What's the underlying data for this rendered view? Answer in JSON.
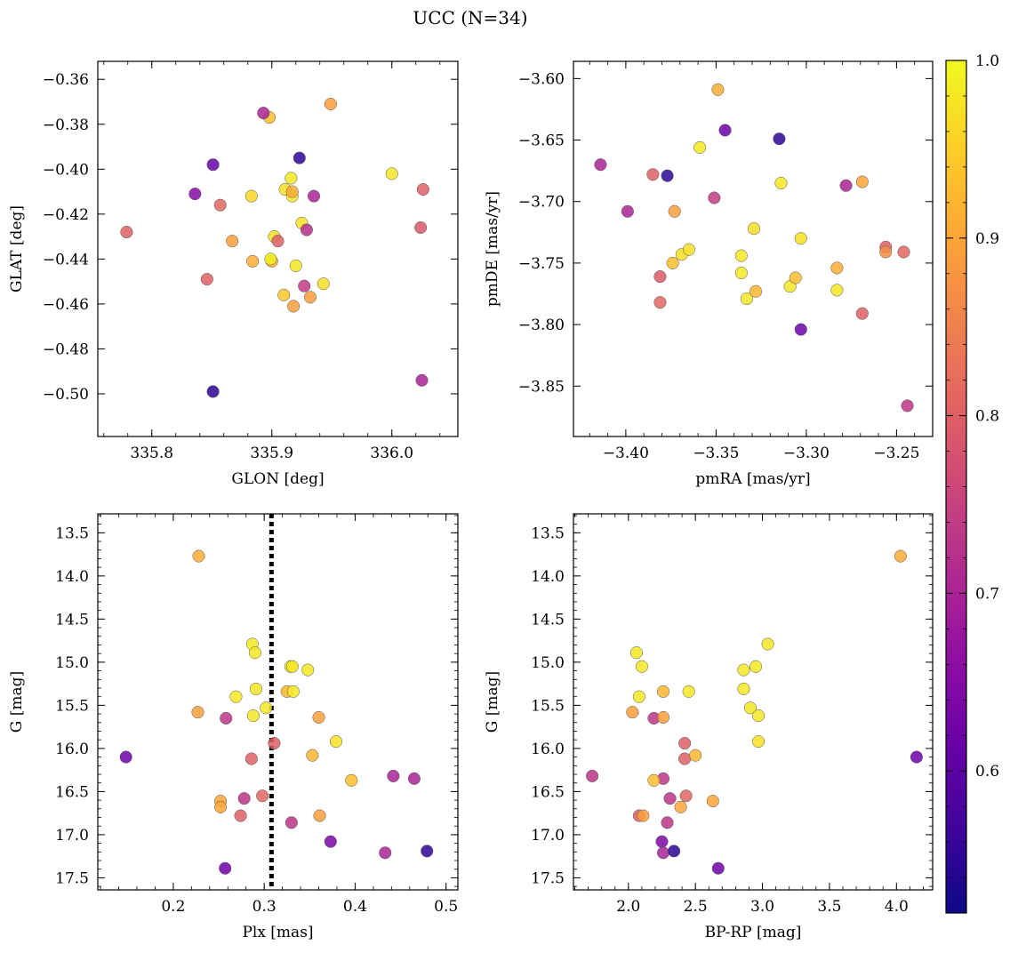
{
  "title": "UCC (N=34)",
  "colorbar": {
    "cmap": "plasma",
    "range": [
      0.52,
      1.0
    ],
    "ticks": [
      "0.6",
      "0.7",
      "0.8",
      "0.9",
      "1.0"
    ],
    "tick_values": [
      0.6,
      0.7,
      0.8,
      0.9,
      1.0
    ]
  },
  "chart_data": [
    {
      "type": "scatter",
      "xlabel": "GLON [deg]",
      "ylabel": "GLAT [deg]",
      "xlim": [
        335.755,
        336.055
      ],
      "ylim": [
        -0.519,
        -0.352
      ],
      "xticks": [
        "335.8",
        "335.9",
        "336.0"
      ],
      "xtick_values": [
        335.8,
        335.9,
        336.0
      ],
      "yticks": [
        "−0.36",
        "−0.38",
        "−0.40",
        "−0.42",
        "−0.44",
        "−0.46",
        "−0.48",
        "−0.50"
      ],
      "ytick_values": [
        -0.36,
        -0.38,
        -0.4,
        -0.42,
        -0.44,
        -0.46,
        -0.48,
        -0.5
      ],
      "points": [
        {
          "x": 335.779,
          "y": -0.428,
          "c": 0.8
        },
        {
          "x": 335.857,
          "y": -0.416,
          "c": 0.81
        },
        {
          "x": 335.851,
          "y": -0.398,
          "c": 0.61
        },
        {
          "x": 335.851,
          "y": -0.499,
          "c": 0.55
        },
        {
          "x": 335.846,
          "y": -0.449,
          "c": 0.8
        },
        {
          "x": 335.836,
          "y": -0.411,
          "c": 0.65
        },
        {
          "x": 335.898,
          "y": -0.377,
          "c": 0.93
        },
        {
          "x": 335.893,
          "y": -0.375,
          "c": 0.7
        },
        {
          "x": 335.917,
          "y": -0.412,
          "c": 0.98
        },
        {
          "x": 335.867,
          "y": -0.432,
          "c": 0.89
        },
        {
          "x": 335.883,
          "y": -0.412,
          "c": 0.96
        },
        {
          "x": 335.884,
          "y": -0.441,
          "c": 0.91
        },
        {
          "x": 335.9,
          "y": -0.441,
          "c": 0.91
        },
        {
          "x": 335.899,
          "y": -0.44,
          "c": 0.99
        },
        {
          "x": 335.902,
          "y": -0.43,
          "c": 0.97
        },
        {
          "x": 335.905,
          "y": -0.432,
          "c": 0.8
        },
        {
          "x": 335.91,
          "y": -0.456,
          "c": 0.94
        },
        {
          "x": 335.911,
          "y": -0.409,
          "c": 0.97
        },
        {
          "x": 335.916,
          "y": -0.404,
          "c": 0.98
        },
        {
          "x": 335.917,
          "y": -0.41,
          "c": 0.91
        },
        {
          "x": 335.918,
          "y": -0.461,
          "c": 0.89
        },
        {
          "x": 335.92,
          "y": -0.443,
          "c": 0.98
        },
        {
          "x": 335.923,
          "y": -0.395,
          "c": 0.55
        },
        {
          "x": 335.925,
          "y": -0.424,
          "c": 0.97
        },
        {
          "x": 335.927,
          "y": -0.452,
          "c": 0.74
        },
        {
          "x": 335.929,
          "y": -0.427,
          "c": 0.72
        },
        {
          "x": 335.932,
          "y": -0.457,
          "c": 0.89
        },
        {
          "x": 335.935,
          "y": -0.412,
          "c": 0.7
        },
        {
          "x": 335.943,
          "y": -0.451,
          "c": 0.97
        },
        {
          "x": 335.949,
          "y": -0.371,
          "c": 0.89
        },
        {
          "x": 336.0,
          "y": -0.402,
          "c": 0.98
        },
        {
          "x": 336.024,
          "y": -0.426,
          "c": 0.79
        },
        {
          "x": 336.026,
          "y": -0.409,
          "c": 0.8
        },
        {
          "x": 336.025,
          "y": -0.494,
          "c": 0.7
        }
      ]
    },
    {
      "type": "scatter",
      "xlabel": "pmRA [mas/yr]",
      "ylabel": "pmDE [mas/yr]",
      "xlim": [
        -3.429,
        -3.23
      ],
      "ylim": [
        -3.891,
        -3.586
      ],
      "xticks": [
        "−3.40",
        "−3.35",
        "−3.30",
        "−3.25"
      ],
      "xtick_values": [
        -3.4,
        -3.35,
        -3.3,
        -3.25
      ],
      "yticks": [
        "−3.60",
        "−3.65",
        "−3.70",
        "−3.75",
        "−3.80",
        "−3.85"
      ],
      "ytick_values": [
        -3.6,
        -3.65,
        -3.7,
        -3.75,
        -3.8,
        -3.85
      ],
      "points": [
        {
          "x": -3.414,
          "y": -3.67,
          "c": 0.7
        },
        {
          "x": -3.399,
          "y": -3.708,
          "c": 0.7
        },
        {
          "x": -3.385,
          "y": -3.678,
          "c": 0.8
        },
        {
          "x": -3.377,
          "y": -3.679,
          "c": 0.55
        },
        {
          "x": -3.381,
          "y": -3.761,
          "c": 0.79
        },
        {
          "x": -3.381,
          "y": -3.782,
          "c": 0.81
        },
        {
          "x": -3.373,
          "y": -3.708,
          "c": 0.89
        },
        {
          "x": -3.374,
          "y": -3.75,
          "c": 0.93
        },
        {
          "x": -3.369,
          "y": -3.743,
          "c": 0.97
        },
        {
          "x": -3.365,
          "y": -3.739,
          "c": 0.97
        },
        {
          "x": -3.359,
          "y": -3.656,
          "c": 0.98
        },
        {
          "x": -3.349,
          "y": -3.609,
          "c": 0.91
        },
        {
          "x": -3.345,
          "y": -3.642,
          "c": 0.62
        },
        {
          "x": -3.351,
          "y": -3.697,
          "c": 0.74
        },
        {
          "x": -3.336,
          "y": -3.744,
          "c": 0.98
        },
        {
          "x": -3.336,
          "y": -3.758,
          "c": 0.98
        },
        {
          "x": -3.333,
          "y": -3.779,
          "c": 0.98
        },
        {
          "x": -3.329,
          "y": -3.722,
          "c": 0.97
        },
        {
          "x": -3.328,
          "y": -3.773,
          "c": 0.92
        },
        {
          "x": -3.315,
          "y": -3.649,
          "c": 0.55
        },
        {
          "x": -3.314,
          "y": -3.685,
          "c": 0.98
        },
        {
          "x": -3.309,
          "y": -3.769,
          "c": 0.98
        },
        {
          "x": -3.306,
          "y": -3.762,
          "c": 0.93
        },
        {
          "x": -3.303,
          "y": -3.73,
          "c": 0.97
        },
        {
          "x": -3.303,
          "y": -3.804,
          "c": 0.62
        },
        {
          "x": -3.283,
          "y": -3.754,
          "c": 0.91
        },
        {
          "x": -3.283,
          "y": -3.772,
          "c": 0.98
        },
        {
          "x": -3.278,
          "y": -3.687,
          "c": 0.7
        },
        {
          "x": -3.269,
          "y": -3.684,
          "c": 0.9
        },
        {
          "x": -3.269,
          "y": -3.791,
          "c": 0.8
        },
        {
          "x": -3.256,
          "y": -3.737,
          "c": 0.8
        },
        {
          "x": -3.256,
          "y": -3.741,
          "c": 0.87
        },
        {
          "x": -3.246,
          "y": -3.741,
          "c": 0.81
        },
        {
          "x": -3.244,
          "y": -3.866,
          "c": 0.73
        }
      ]
    },
    {
      "type": "scatter",
      "xlabel": "Plx [mas]",
      "ylabel": "G [mag]",
      "xlim": [
        0.117,
        0.513
      ],
      "ylim": [
        17.64,
        13.28
      ],
      "reference_line": {
        "x": 0.308,
        "style": "dotted"
      },
      "xticks": [
        "0.2",
        "0.3",
        "0.4",
        "0.5"
      ],
      "xtick_values": [
        0.2,
        0.3,
        0.4,
        0.5
      ],
      "yticks": [
        "13.5",
        "14.0",
        "14.5",
        "15.0",
        "15.5",
        "16.0",
        "16.5",
        "17.0",
        "17.5"
      ],
      "ytick_values": [
        13.5,
        14.0,
        14.5,
        15.0,
        15.5,
        16.0,
        16.5,
        17.0,
        17.5
      ],
      "points": [
        {
          "x": 0.228,
          "y": 13.77,
          "c": 0.91
        },
        {
          "x": 0.287,
          "y": 14.79,
          "c": 0.98
        },
        {
          "x": 0.29,
          "y": 14.89,
          "c": 0.98
        },
        {
          "x": 0.329,
          "y": 15.05,
          "c": 0.98
        },
        {
          "x": 0.331,
          "y": 15.05,
          "c": 0.98
        },
        {
          "x": 0.348,
          "y": 15.09,
          "c": 0.98
        },
        {
          "x": 0.291,
          "y": 15.31,
          "c": 0.98
        },
        {
          "x": 0.325,
          "y": 15.34,
          "c": 0.92
        },
        {
          "x": 0.332,
          "y": 15.34,
          "c": 0.98
        },
        {
          "x": 0.269,
          "y": 15.4,
          "c": 0.98
        },
        {
          "x": 0.302,
          "y": 15.53,
          "c": 0.98
        },
        {
          "x": 0.227,
          "y": 15.58,
          "c": 0.89
        },
        {
          "x": 0.288,
          "y": 15.62,
          "c": 0.98
        },
        {
          "x": 0.258,
          "y": 15.65,
          "c": 0.73
        },
        {
          "x": 0.36,
          "y": 15.64,
          "c": 0.89
        },
        {
          "x": 0.379,
          "y": 15.92,
          "c": 0.97
        },
        {
          "x": 0.311,
          "y": 15.94,
          "c": 0.8
        },
        {
          "x": 0.148,
          "y": 16.1,
          "c": 0.62
        },
        {
          "x": 0.286,
          "y": 16.12,
          "c": 0.8
        },
        {
          "x": 0.353,
          "y": 16.08,
          "c": 0.92
        },
        {
          "x": 0.442,
          "y": 16.32,
          "c": 0.7
        },
        {
          "x": 0.465,
          "y": 16.35,
          "c": 0.7
        },
        {
          "x": 0.396,
          "y": 16.37,
          "c": 0.93
        },
        {
          "x": 0.298,
          "y": 16.55,
          "c": 0.81
        },
        {
          "x": 0.278,
          "y": 16.58,
          "c": 0.73
        },
        {
          "x": 0.252,
          "y": 16.61,
          "c": 0.9
        },
        {
          "x": 0.252,
          "y": 16.68,
          "c": 0.9
        },
        {
          "x": 0.274,
          "y": 16.78,
          "c": 0.8
        },
        {
          "x": 0.361,
          "y": 16.78,
          "c": 0.89
        },
        {
          "x": 0.33,
          "y": 16.86,
          "c": 0.73
        },
        {
          "x": 0.373,
          "y": 17.08,
          "c": 0.64
        },
        {
          "x": 0.433,
          "y": 17.21,
          "c": 0.7
        },
        {
          "x": 0.479,
          "y": 17.19,
          "c": 0.55
        },
        {
          "x": 0.257,
          "y": 17.39,
          "c": 0.62
        }
      ]
    },
    {
      "type": "scatter",
      "xlabel": "BP-RP [mag]",
      "ylabel": "G [mag]",
      "xlim": [
        1.59,
        4.27
      ],
      "ylim": [
        17.64,
        13.28
      ],
      "xticks": [
        "2.0",
        "2.5",
        "3.0",
        "3.5",
        "4.0"
      ],
      "xtick_values": [
        2.0,
        2.5,
        3.0,
        3.5,
        4.0
      ],
      "yticks": [
        "13.5",
        "14.0",
        "14.5",
        "15.0",
        "15.5",
        "16.0",
        "16.5",
        "17.0",
        "17.5"
      ],
      "ytick_values": [
        13.5,
        14.0,
        14.5,
        15.0,
        15.5,
        16.0,
        16.5,
        17.0,
        17.5
      ],
      "points": [
        {
          "x": 4.03,
          "y": 13.77,
          "c": 0.91
        },
        {
          "x": 2.06,
          "y": 14.89,
          "c": 0.98
        },
        {
          "x": 2.1,
          "y": 15.05,
          "c": 0.98
        },
        {
          "x": 3.04,
          "y": 14.79,
          "c": 0.98
        },
        {
          "x": 2.86,
          "y": 15.09,
          "c": 0.98
        },
        {
          "x": 2.95,
          "y": 15.05,
          "c": 0.98
        },
        {
          "x": 2.86,
          "y": 15.31,
          "c": 0.98
        },
        {
          "x": 2.26,
          "y": 15.34,
          "c": 0.92
        },
        {
          "x": 2.45,
          "y": 15.34,
          "c": 0.98
        },
        {
          "x": 2.08,
          "y": 15.4,
          "c": 0.98
        },
        {
          "x": 2.91,
          "y": 15.53,
          "c": 0.98
        },
        {
          "x": 2.03,
          "y": 15.58,
          "c": 0.89
        },
        {
          "x": 2.97,
          "y": 15.62,
          "c": 0.98
        },
        {
          "x": 2.19,
          "y": 15.65,
          "c": 0.73
        },
        {
          "x": 2.26,
          "y": 15.64,
          "c": 0.89
        },
        {
          "x": 2.97,
          "y": 15.92,
          "c": 0.97
        },
        {
          "x": 2.42,
          "y": 15.94,
          "c": 0.8
        },
        {
          "x": 4.15,
          "y": 16.1,
          "c": 0.62
        },
        {
          "x": 2.42,
          "y": 16.12,
          "c": 0.8
        },
        {
          "x": 2.5,
          "y": 16.08,
          "c": 0.92
        },
        {
          "x": 1.73,
          "y": 16.32,
          "c": 0.73
        },
        {
          "x": 2.26,
          "y": 16.35,
          "c": 0.73
        },
        {
          "x": 2.19,
          "y": 16.37,
          "c": 0.93
        },
        {
          "x": 2.43,
          "y": 16.55,
          "c": 0.81
        },
        {
          "x": 2.31,
          "y": 16.58,
          "c": 0.73
        },
        {
          "x": 2.63,
          "y": 16.61,
          "c": 0.9
        },
        {
          "x": 2.39,
          "y": 16.68,
          "c": 0.9
        },
        {
          "x": 2.08,
          "y": 16.78,
          "c": 0.8
        },
        {
          "x": 2.11,
          "y": 16.78,
          "c": 0.89
        },
        {
          "x": 2.29,
          "y": 16.86,
          "c": 0.73
        },
        {
          "x": 2.25,
          "y": 17.08,
          "c": 0.64
        },
        {
          "x": 2.26,
          "y": 17.21,
          "c": 0.7
        },
        {
          "x": 2.34,
          "y": 17.19,
          "c": 0.55
        },
        {
          "x": 2.67,
          "y": 17.39,
          "c": 0.62
        }
      ]
    }
  ]
}
